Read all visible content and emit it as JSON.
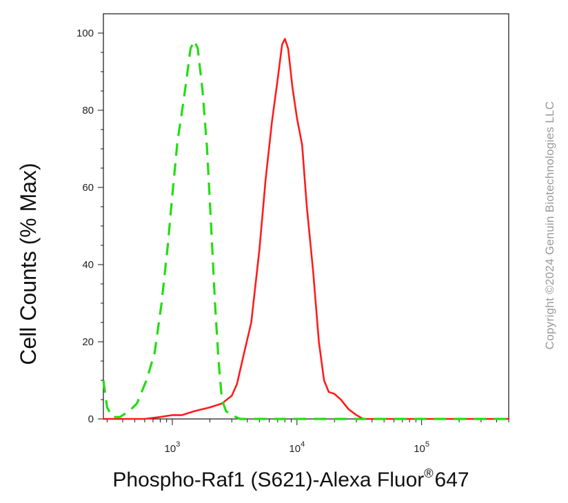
{
  "chart_data": {
    "type": "line",
    "xscale": "log",
    "xlim": [
      280,
      500000
    ],
    "ylim": [
      0,
      105
    ],
    "xlabel": "Phospho-Raf1 (S621)-Alexa Fluor",
    "xlabel_sup": "®",
    "xlabel_suffix": "647",
    "ylabel": "Cell Counts (% Max)",
    "y_ticks": [
      0,
      20,
      40,
      60,
      80,
      100
    ],
    "y_tick_labels": [
      "0",
      "20",
      "40",
      "60",
      "80",
      "100"
    ],
    "x_ticks": [
      {
        "value": 1000,
        "base": "10",
        "exp": "3"
      },
      {
        "value": 10000,
        "base": "10",
        "exp": "4"
      },
      {
        "value": 100000,
        "base": "10",
        "exp": "5"
      }
    ],
    "grid": false,
    "series": [
      {
        "color": "#ff1a1a",
        "dash": "solid",
        "points": [
          [
            280,
            0
          ],
          [
            600,
            0
          ],
          [
            800,
            0.5
          ],
          [
            1000,
            1
          ],
          [
            1200,
            1
          ],
          [
            1500,
            2
          ],
          [
            2000,
            3
          ],
          [
            2500,
            4
          ],
          [
            3000,
            6
          ],
          [
            3300,
            9
          ],
          [
            3700,
            16
          ],
          [
            4300,
            25
          ],
          [
            5000,
            44
          ],
          [
            5600,
            62
          ],
          [
            6300,
            77
          ],
          [
            7000,
            88
          ],
          [
            7600,
            97
          ],
          [
            8000,
            98.5
          ],
          [
            8500,
            96
          ],
          [
            9200,
            86
          ],
          [
            10000,
            78
          ],
          [
            11000,
            71
          ],
          [
            12000,
            55
          ],
          [
            13500,
            38
          ],
          [
            15000,
            20
          ],
          [
            16500,
            10
          ],
          [
            18000,
            7
          ],
          [
            20000,
            6.5
          ],
          [
            22500,
            5
          ],
          [
            26000,
            2.5
          ],
          [
            30000,
            1
          ],
          [
            34000,
            0
          ],
          [
            500000,
            0
          ]
        ]
      },
      {
        "color": "#22dd11",
        "dash": "dashed",
        "points": [
          [
            280,
            10
          ],
          [
            300,
            3
          ],
          [
            330,
            0.5
          ],
          [
            380,
            0.5
          ],
          [
            450,
            2
          ],
          [
            520,
            4
          ],
          [
            620,
            10
          ],
          [
            720,
            17
          ],
          [
            820,
            30
          ],
          [
            920,
            45
          ],
          [
            1000,
            58
          ],
          [
            1100,
            72
          ],
          [
            1200,
            80
          ],
          [
            1300,
            88
          ],
          [
            1400,
            96
          ],
          [
            1500,
            98
          ],
          [
            1600,
            96
          ],
          [
            1750,
            85
          ],
          [
            1900,
            70
          ],
          [
            2050,
            50
          ],
          [
            2200,
            30
          ],
          [
            2350,
            15
          ],
          [
            2500,
            5
          ],
          [
            2700,
            2
          ],
          [
            3000,
            1
          ],
          [
            3500,
            0
          ],
          [
            500000,
            0
          ]
        ]
      }
    ]
  },
  "watermark": "Copyright ©2024 Genuin Biotechnologies LLC"
}
